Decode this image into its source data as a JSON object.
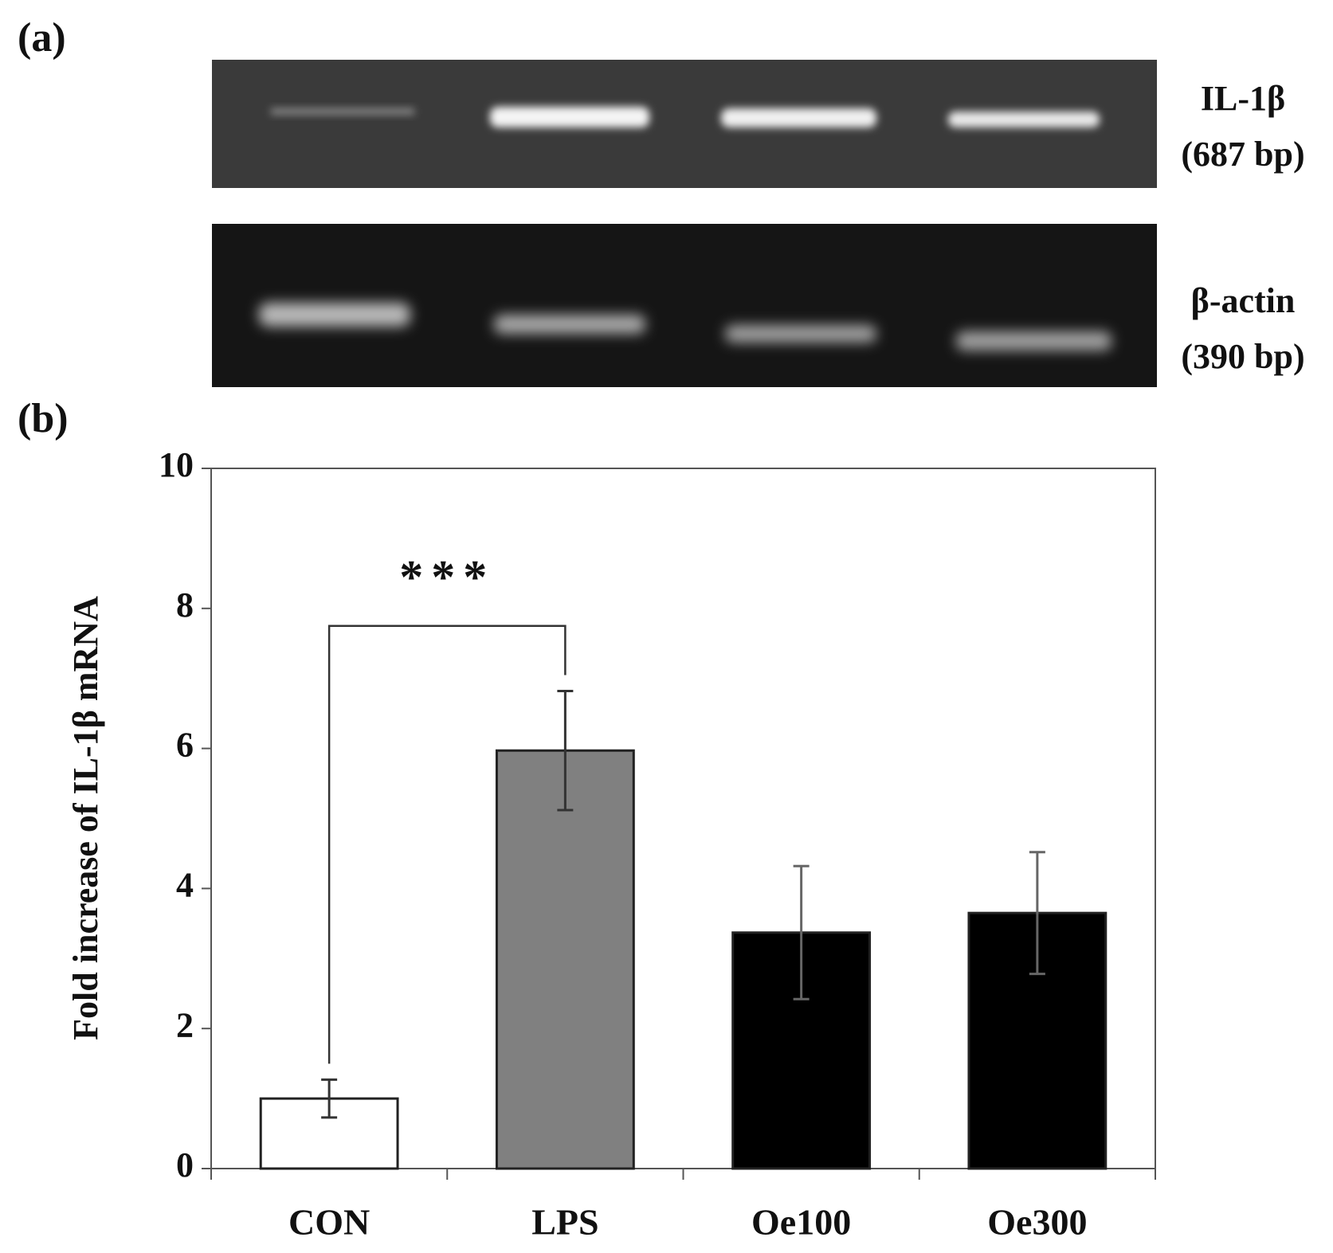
{
  "panel_a": {
    "label": "(a)",
    "gels": [
      {
        "name": "IL-1β",
        "size": "(687 bp)"
      },
      {
        "name": "β-actin",
        "size": "(390 bp)"
      }
    ]
  },
  "chart_data": {
    "type": "bar",
    "panel_label": "(b)",
    "y_label": "Fold increase of IL-1β mRNA",
    "categories": [
      "CON",
      "LPS",
      "Oe100",
      "Oe300"
    ],
    "values": [
      1.0,
      5.97,
      3.37,
      3.65
    ],
    "errors": [
      0.27,
      0.85,
      0.95,
      0.87
    ],
    "colors": [
      "#ffffff",
      "#808080",
      "#000000",
      "#000000"
    ],
    "ylim": [
      0,
      10
    ],
    "yticks": [
      0,
      2,
      4,
      6,
      8,
      10
    ],
    "significance": {
      "label": "***",
      "between": [
        0,
        1
      ],
      "y": 7.75
    }
  }
}
